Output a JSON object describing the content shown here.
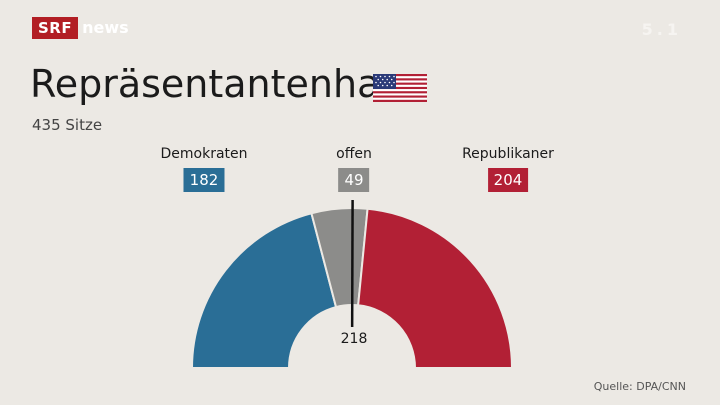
{
  "brand": {
    "logo_left": "SRF",
    "logo_right": "news",
    "watermark": "5.1"
  },
  "header": {
    "title": "Repräsentantenhaus",
    "subtitle": "435 Sitze",
    "flag_icon": "us-flag-icon"
  },
  "source": "Quelle: DPA/CNN",
  "chart_data": {
    "type": "pie",
    "layout": "semicircle",
    "total": 435,
    "majority": 218,
    "majority_label": "218",
    "categories": [
      "Demokraten",
      "offen",
      "Republikaner"
    ],
    "values": [
      182,
      49,
      204
    ],
    "value_labels": [
      "182",
      "49",
      "204"
    ],
    "colors": [
      "#2a6e96",
      "#8c8c8a",
      "#b22035"
    ]
  }
}
